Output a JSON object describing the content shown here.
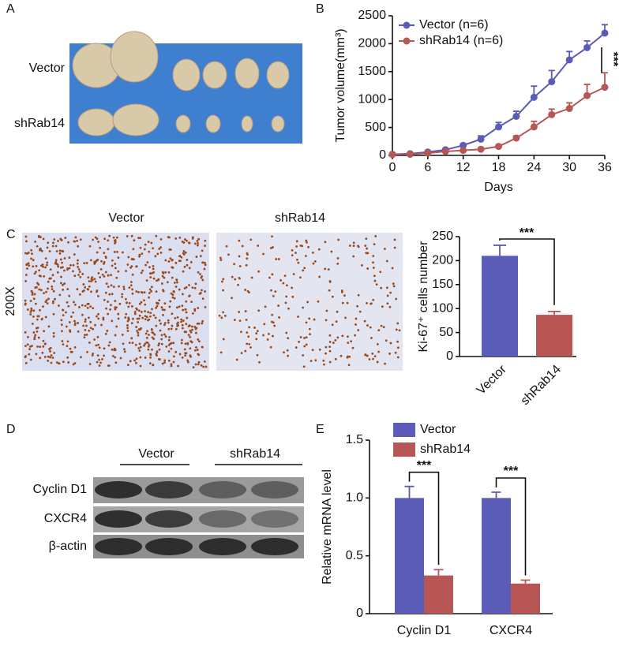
{
  "figure": {
    "panel_labels": [
      "A",
      "B",
      "C",
      "D",
      "E"
    ],
    "photo_a": {
      "rows": [
        "Vector",
        "shRab14"
      ]
    },
    "photo_c": {
      "columns": [
        "Vector",
        "shRab14"
      ],
      "magnification": "200X"
    },
    "blot_d": {
      "groups": [
        "Vector",
        "shRab14"
      ],
      "rows": [
        "Cyclin D1",
        "CXCR4",
        "β-actin"
      ]
    }
  },
  "chart_data": [
    {
      "type": "line",
      "x_label": "Days",
      "y_label": "Tumor volume(mm³)",
      "x": [
        0,
        3,
        6,
        9,
        12,
        15,
        18,
        21,
        24,
        27,
        30,
        33,
        36
      ],
      "series": [
        {
          "name": "Vector (n=6)",
          "color": "#5b5bb8",
          "values": [
            20,
            30,
            60,
            100,
            180,
            290,
            510,
            700,
            1040,
            1320,
            1710,
            1930,
            2190
          ],
          "errors": [
            10,
            10,
            15,
            20,
            30,
            60,
            80,
            90,
            200,
            200,
            150,
            120,
            150
          ]
        },
        {
          "name": "shRab14 (n=6)",
          "color": "#b85555",
          "values": [
            15,
            20,
            40,
            70,
            90,
            110,
            160,
            310,
            510,
            730,
            840,
            1070,
            1220
          ],
          "errors": [
            5,
            5,
            10,
            10,
            15,
            20,
            30,
            40,
            100,
            100,
            100,
            200,
            260
          ]
        }
      ],
      "xlim": [
        0,
        36
      ],
      "xticks": [
        0,
        6,
        12,
        18,
        24,
        30,
        36
      ],
      "ylim": [
        0,
        2500
      ],
      "yticks": [
        0,
        500,
        1000,
        1500,
        2000,
        2500
      ],
      "annotation": "***",
      "legend": "upper left"
    },
    {
      "type": "bar",
      "y_label": "Ki-67⁺ cells number",
      "categories": [
        "Vector",
        "shRab14"
      ],
      "values": [
        210,
        87
      ],
      "errors": [
        22,
        7
      ],
      "colors": [
        "#5b5bb8",
        "#b85555"
      ],
      "ylim": [
        0,
        250
      ],
      "yticks": [
        0,
        50,
        100,
        150,
        200,
        250
      ],
      "annotation": "***"
    },
    {
      "type": "grouped-bar",
      "y_label": "Relative mRNA level",
      "categories": [
        "Cyclin D1",
        "CXCR4"
      ],
      "series": [
        {
          "name": "Vector",
          "color": "#5b5bb8",
          "values": [
            1.0,
            1.0
          ],
          "errors": [
            0.1,
            0.05
          ]
        },
        {
          "name": "shRab14",
          "color": "#b85555",
          "values": [
            0.33,
            0.26
          ],
          "errors": [
            0.05,
            0.03
          ]
        }
      ],
      "ylim": [
        0,
        1.5
      ],
      "yticks": [
        0,
        {
          "value": 0.5,
          "label": "0.5"
        },
        {
          "value": 1,
          "label": "1.0"
        },
        {
          "value": 1.5,
          "label": "1.5"
        }
      ],
      "annotations": [
        "***",
        "***"
      ],
      "legend": "upper left"
    }
  ]
}
